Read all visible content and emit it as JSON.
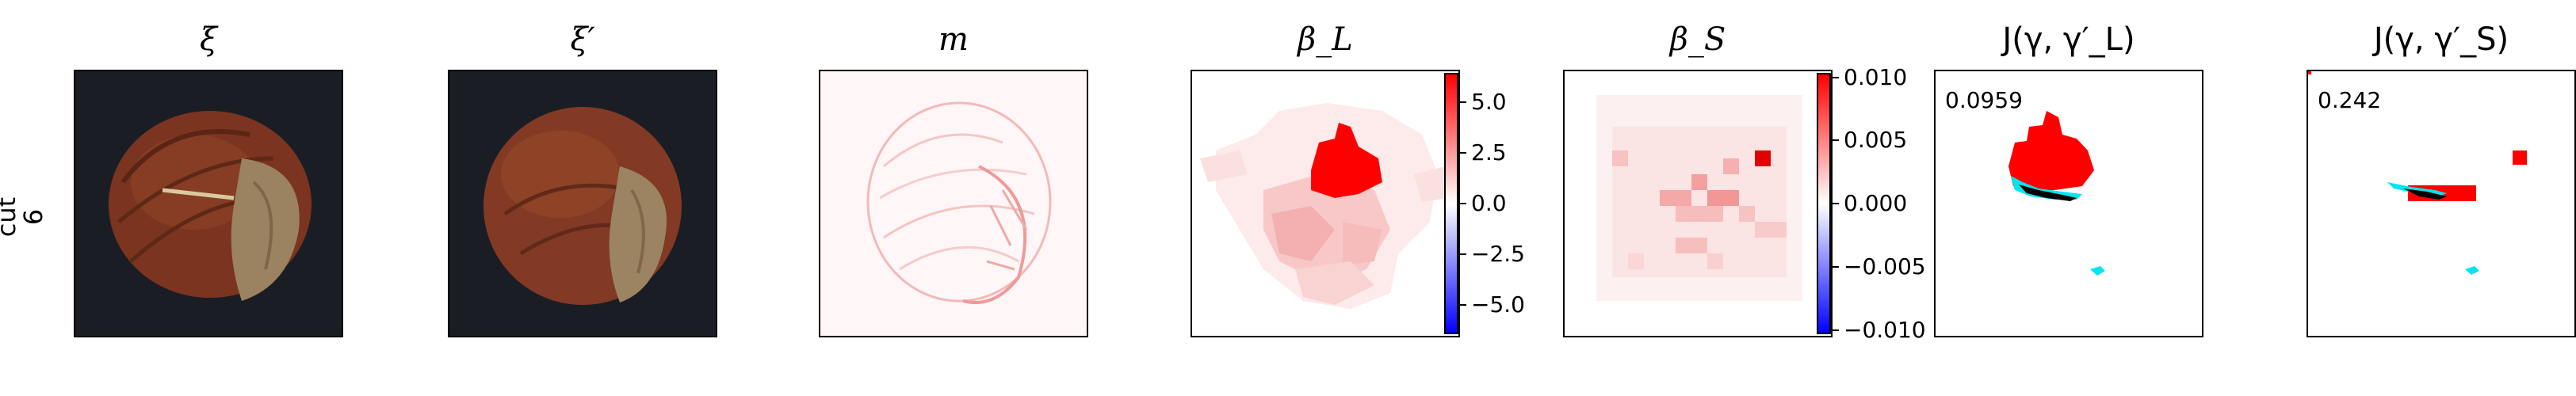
{
  "row_label": {
    "line1": "cut",
    "line2": "6"
  },
  "panels": [
    {
      "title": "ξ"
    },
    {
      "title": "ξ′"
    },
    {
      "title": "m"
    },
    {
      "title": "β_L"
    },
    {
      "title": "β_S"
    },
    {
      "title": "J(γ, γ′_L)",
      "score": "0.0959"
    },
    {
      "title": "J(γ, γ′_S)",
      "score": "0.242"
    }
  ],
  "colorbars": {
    "beta_L": {
      "ticks": [
        "5.0",
        "2.5",
        "0.0",
        "−2.5",
        "−5.0"
      ],
      "range": [
        -6.5,
        6.5
      ]
    },
    "beta_S": {
      "ticks": [
        "0.010",
        "0.005",
        "0.000",
        "−0.005",
        "−0.010"
      ],
      "range": [
        -0.0105,
        0.0105
      ]
    }
  },
  "colors": {
    "positive": "#ff0000",
    "negative": "#0000ff",
    "neutral": "#ffffff",
    "cyan": "#00e5ee",
    "dark_bg": "#1b1d24",
    "nut": "#7a3420",
    "nut_cap": "#9b8260"
  }
}
